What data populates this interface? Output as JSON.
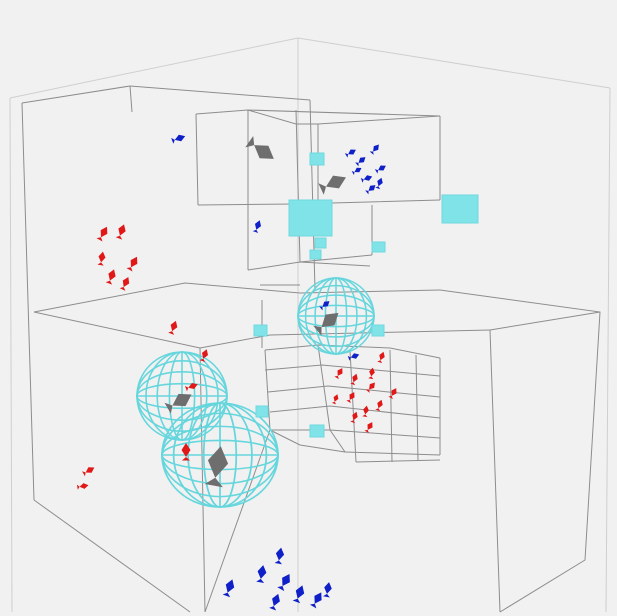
{
  "scene": {
    "background": "#f1f1f1",
    "wireframe_color": "#8a8a8a",
    "outer_box_color": "#c9c9c9",
    "cyan_color": "#7fe3e8",
    "cyan_stroke": "#66d6dd",
    "red_agent_color": "#e01818",
    "blue_agent_color": "#1020c8",
    "grey_agent_color": "#6e6e6e",
    "object_types": [
      "red-fish-agent",
      "blue-fish-agent",
      "grey-predator-agent",
      "cyan-food-cube",
      "cyan-wireframe-sphere"
    ]
  }
}
